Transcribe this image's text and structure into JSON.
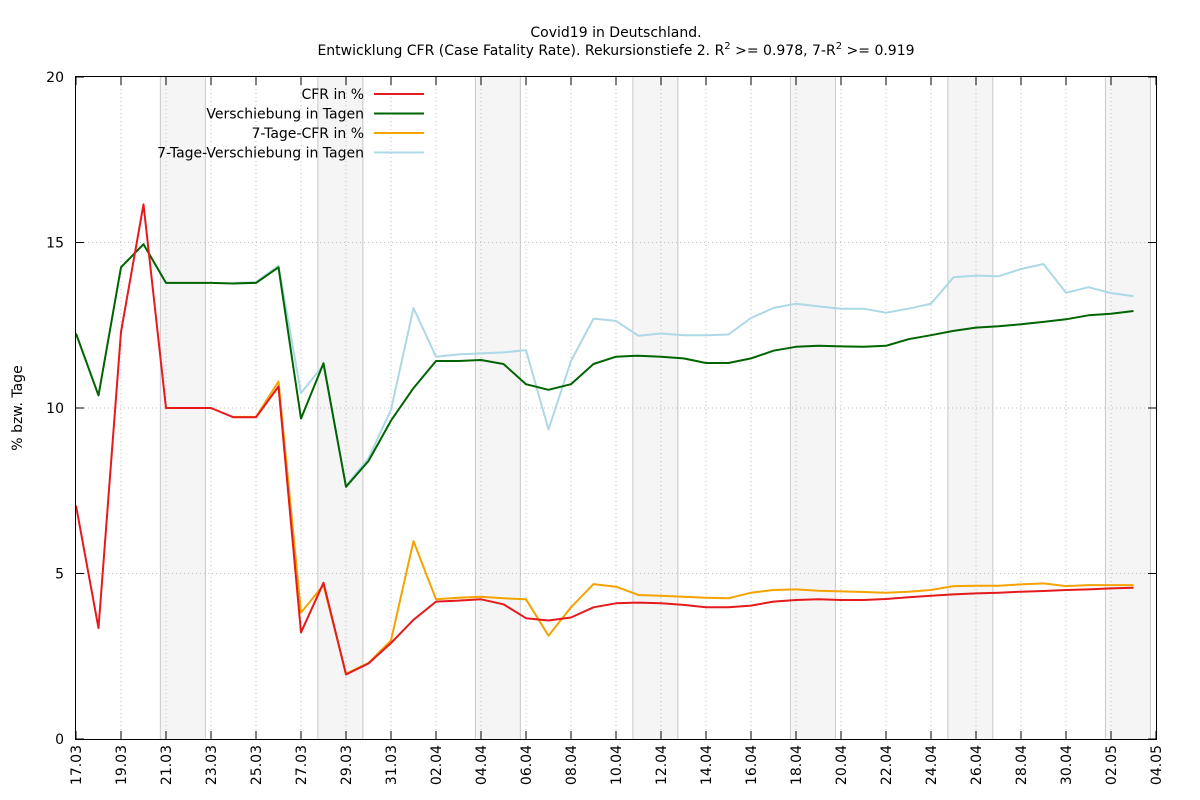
{
  "chart_data": {
    "type": "line",
    "title": "Covid19 in Deutschland.",
    "subtitle": {
      "prefix": "Entwicklung CFR (Case Fatality Rate). Rekursionstiefe 2. R",
      "sup1": "2",
      "middle": " >= 0.978, 7-R",
      "sup2": "2",
      "suffix": " >= 0.919"
    },
    "xlabel": "",
    "ylabel": "% bzw. Tage",
    "ylim": [
      0,
      20
    ],
    "yticks": [
      "0",
      "5",
      "10",
      "15",
      "20"
    ],
    "xticks": [
      "17.03",
      "19.03",
      "21.03",
      "23.03",
      "25.03",
      "27.03",
      "29.03",
      "31.03",
      "02.04",
      "04.04",
      "06.04",
      "08.04",
      "10.04",
      "12.04",
      "14.04",
      "16.04",
      "18.04",
      "20.04",
      "22.04",
      "24.04",
      "26.04",
      "28.04",
      "30.04",
      "02.05",
      "04.05"
    ],
    "x_range_days": [
      0,
      48
    ],
    "weekend_shading_days": [
      [
        3.75,
        5.75
      ],
      [
        10.75,
        12.75
      ],
      [
        17.75,
        19.75
      ],
      [
        24.75,
        26.75
      ],
      [
        31.75,
        33.75
      ],
      [
        38.75,
        40.75
      ],
      [
        45.75,
        47.75
      ]
    ],
    "grid": true,
    "legend": "top-left",
    "series": [
      {
        "name": "CFR in %",
        "color": "#e41a1c",
        "x": [
          0,
          1,
          2,
          3,
          4,
          5,
          6,
          7,
          8,
          9,
          10,
          11,
          12,
          13,
          14,
          15,
          16,
          17,
          18,
          19,
          20,
          21,
          22,
          23,
          24,
          25,
          26,
          27,
          28,
          29,
          30,
          31,
          32,
          33,
          34,
          35,
          36,
          37,
          38,
          39,
          40,
          41,
          42,
          43,
          44,
          45,
          46,
          47
        ],
        "values": [
          7.05,
          3.35,
          12.3,
          16.15,
          10.0,
          10.0,
          10.0,
          9.72,
          9.72,
          10.65,
          3.22,
          4.72,
          1.95,
          2.28,
          2.9,
          3.6,
          4.15,
          4.18,
          4.22,
          4.07,
          3.65,
          3.58,
          3.67,
          3.98,
          4.1,
          4.12,
          4.1,
          4.05,
          3.98,
          3.98,
          4.03,
          4.15,
          4.2,
          4.22,
          4.2,
          4.2,
          4.23,
          4.28,
          4.33,
          4.37,
          4.4,
          4.42,
          4.45,
          4.47,
          4.5,
          4.52,
          4.55,
          4.57
        ]
      },
      {
        "name": "Verschiebung in Tagen",
        "color": "#006400",
        "x": [
          0,
          1,
          2,
          3,
          4,
          5,
          6,
          7,
          8,
          9,
          10,
          11,
          12,
          13,
          14,
          15,
          16,
          17,
          18,
          19,
          20,
          21,
          22,
          23,
          24,
          25,
          26,
          27,
          28,
          29,
          30,
          31,
          32,
          33,
          34,
          35,
          36,
          37,
          38,
          39,
          40,
          41,
          42,
          43,
          44,
          45,
          46,
          47
        ],
        "values": [
          12.25,
          10.38,
          14.25,
          14.95,
          13.78,
          13.78,
          13.78,
          13.76,
          13.78,
          14.25,
          9.68,
          11.35,
          7.62,
          8.4,
          9.62,
          10.6,
          11.42,
          11.42,
          11.45,
          11.33,
          10.72,
          10.55,
          10.72,
          11.33,
          11.55,
          11.58,
          11.55,
          11.5,
          11.36,
          11.36,
          11.5,
          11.73,
          11.85,
          11.88,
          11.86,
          11.85,
          11.88,
          12.08,
          12.2,
          12.33,
          12.43,
          12.47,
          12.53,
          12.6,
          12.68,
          12.8,
          12.85,
          12.93
        ]
      },
      {
        "name": "7-Tage-CFR in %",
        "color": "#f4a300",
        "x": [
          7,
          8,
          9,
          10,
          11,
          12,
          13,
          14,
          15,
          16,
          17,
          18,
          19,
          20,
          21,
          22,
          23,
          24,
          25,
          26,
          27,
          28,
          29,
          30,
          31,
          32,
          33,
          34,
          35,
          36,
          37,
          38,
          39,
          40,
          41,
          42,
          43,
          44,
          45,
          46,
          47
        ],
        "values": [
          9.73,
          9.73,
          10.8,
          3.82,
          4.65,
          1.97,
          2.3,
          2.98,
          5.98,
          4.22,
          4.27,
          4.3,
          4.25,
          4.22,
          3.12,
          3.98,
          4.68,
          4.6,
          4.35,
          4.33,
          4.3,
          4.27,
          4.25,
          4.42,
          4.5,
          4.52,
          4.48,
          4.46,
          4.44,
          4.42,
          4.45,
          4.5,
          4.62,
          4.63,
          4.63,
          4.67,
          4.7,
          4.62,
          4.65,
          4.65,
          4.65
        ]
      },
      {
        "name": "7-Tage-Verschiebung in Tagen",
        "color": "#add8e6",
        "x": [
          7,
          8,
          9,
          10,
          11,
          12,
          13,
          14,
          15,
          16,
          17,
          18,
          19,
          20,
          21,
          22,
          23,
          24,
          25,
          26,
          27,
          28,
          29,
          30,
          31,
          32,
          33,
          34,
          35,
          36,
          37,
          38,
          39,
          40,
          41,
          42,
          43,
          44,
          45,
          46,
          47
        ],
        "values": [
          13.78,
          13.8,
          14.3,
          10.45,
          11.3,
          7.65,
          8.48,
          9.95,
          13.02,
          11.55,
          11.62,
          11.65,
          11.68,
          11.75,
          9.35,
          11.42,
          12.7,
          12.63,
          12.18,
          12.25,
          12.2,
          12.2,
          12.22,
          12.72,
          13.02,
          13.15,
          13.07,
          13.0,
          13.0,
          12.88,
          13.0,
          13.15,
          13.95,
          14.0,
          13.98,
          14.2,
          14.35,
          13.48,
          13.65,
          13.47,
          13.38
        ]
      }
    ]
  }
}
